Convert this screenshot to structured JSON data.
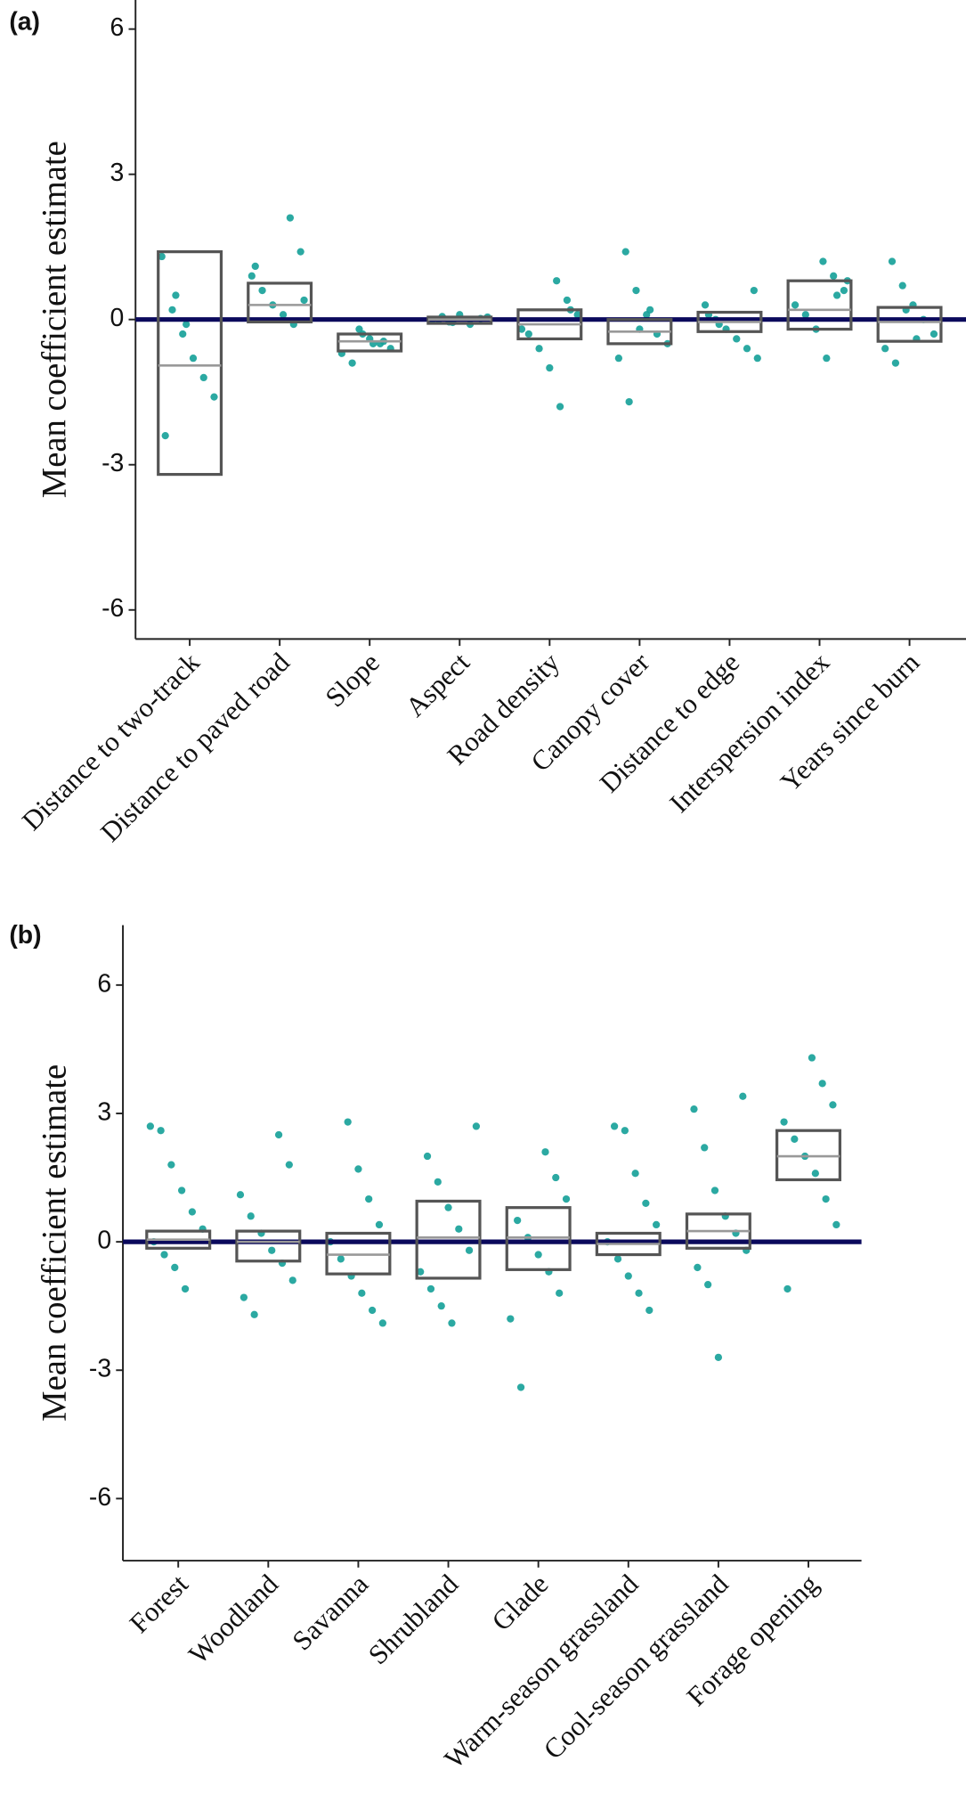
{
  "chart_data": [
    {
      "type": "box",
      "panel": "(a)",
      "y_label": "Mean coefficient estimate",
      "categories": [
        "Distance to two-track",
        "Distance to paved road",
        "Slope",
        "Aspect",
        "Road density",
        "Canopy cover",
        "Distance to edge",
        "Interspersion index",
        "Years since burn"
      ],
      "upper": [
        1.4,
        0.75,
        -0.3,
        0.05,
        0.2,
        0.0,
        0.15,
        0.8,
        0.25
      ],
      "median": [
        -0.95,
        0.3,
        -0.45,
        0,
        -0.1,
        -0.25,
        -0.05,
        0.2,
        -0.05
      ],
      "lower": [
        -3.2,
        -0.05,
        -0.65,
        -0.08,
        -0.4,
        -0.5,
        -0.25,
        -0.2,
        -0.45
      ],
      "points": [
        [
          1.3,
          0.2,
          -0.3,
          -0.8,
          -1.2,
          -1.6,
          -2.4,
          0.5,
          -0.1
        ],
        [
          2.1,
          1.4,
          0.9,
          0.6,
          0.3,
          0.1,
          -0.1,
          0.4,
          1.1
        ],
        [
          -0.2,
          -0.4,
          -0.5,
          -0.6,
          -0.7,
          -0.9,
          -0.3,
          -0.5,
          -0.45
        ],
        [
          0.05,
          0.0,
          -0.05,
          0.1,
          -0.1,
          0.02,
          -0.02,
          0.06,
          -0.06
        ],
        [
          0.8,
          0.4,
          0.1,
          -0.3,
          -0.6,
          -1.0,
          -1.8,
          0.2,
          -0.2
        ],
        [
          1.4,
          0.6,
          0.1,
          -0.3,
          -0.5,
          -0.8,
          -1.7,
          -0.2,
          0.2
        ],
        [
          0.6,
          0.3,
          0.0,
          -0.2,
          -0.4,
          -0.6,
          -0.8,
          0.1,
          -0.1
        ],
        [
          1.2,
          0.9,
          0.6,
          0.3,
          0.1,
          -0.2,
          -0.8,
          0.5,
          0.8
        ],
        [
          1.2,
          0.7,
          0.3,
          0.0,
          -0.3,
          -0.6,
          -0.9,
          0.2,
          -0.4
        ]
      ],
      "hline": 0,
      "hline_color": "#0b0a5c",
      "point_color": "#14a098",
      "ylim": [
        -6.6,
        6.6
      ],
      "yticks": [
        -6,
        -3,
        0,
        3,
        6
      ]
    },
    {
      "type": "box",
      "panel": "(b)",
      "y_label": "Mean coefficient estimate",
      "categories": [
        "Forest",
        "Woodland",
        "Savanna",
        "Shrubland",
        "Glade",
        "Warm-season grassland",
        "Cool-season grassland",
        "Forage opening"
      ],
      "upper": [
        0.25,
        0.25,
        0.2,
        0.95,
        0.8,
        0.2,
        0.65,
        2.6
      ],
      "median": [
        0.05,
        0,
        -0.3,
        0.1,
        0.1,
        -0.05,
        0.25,
        2.0
      ],
      "lower": [
        -0.15,
        -0.45,
        -0.75,
        -0.85,
        -0.65,
        -0.3,
        -0.15,
        1.45
      ],
      "points": [
        [
          2.7,
          2.6,
          1.8,
          1.2,
          0.7,
          0.3,
          0.0,
          -0.3,
          -0.6,
          -1.1
        ],
        [
          2.5,
          1.8,
          1.1,
          0.6,
          0.2,
          -0.2,
          -0.5,
          -0.9,
          -1.3,
          -1.7
        ],
        [
          2.8,
          1.7,
          1.0,
          0.4,
          0.0,
          -0.4,
          -0.8,
          -1.2,
          -1.6,
          -1.9
        ],
        [
          2.7,
          2.0,
          1.4,
          0.8,
          0.3,
          -0.2,
          -0.7,
          -1.1,
          -1.5,
          -1.9
        ],
        [
          2.1,
          1.5,
          1.0,
          0.5,
          0.1,
          -0.3,
          -0.7,
          -1.2,
          -1.8,
          -3.4
        ],
        [
          2.7,
          2.6,
          1.6,
          0.9,
          0.4,
          0.0,
          -0.4,
          -0.8,
          -1.2,
          -1.6
        ],
        [
          3.4,
          3.1,
          2.2,
          1.2,
          0.6,
          0.2,
          -0.2,
          -0.6,
          -1.0,
          -2.7
        ],
        [
          4.3,
          3.7,
          3.2,
          2.8,
          2.4,
          2.0,
          1.6,
          1.0,
          0.4,
          -1.1
        ]
      ],
      "hline": 0,
      "hline_color": "#0b0a5c",
      "point_color": "#14a098",
      "ylim": [
        -7.45,
        7.4
      ],
      "yticks": [
        -6,
        -3,
        0,
        3,
        6
      ]
    }
  ]
}
